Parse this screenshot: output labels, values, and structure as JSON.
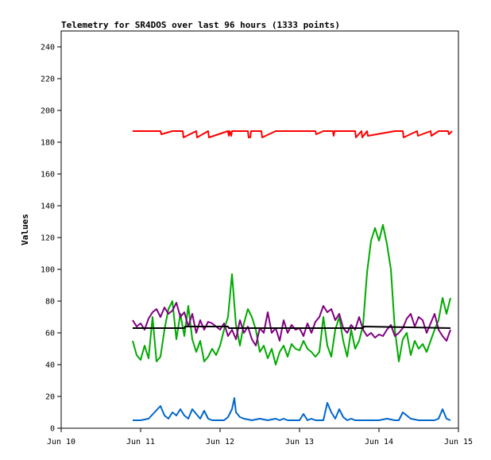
{
  "chart_data": {
    "type": "line",
    "title": "Telemetry for SR4DOS over last 96 hours (1333 points)",
    "xlabel": "",
    "ylabel": "Values",
    "xlim": [
      0,
      5
    ],
    "ylim": [
      0,
      250
    ],
    "x_ticks": [
      {
        "pos": 0,
        "label": "Jun 10"
      },
      {
        "pos": 1,
        "label": "Jun 11"
      },
      {
        "pos": 2,
        "label": "Jun 12"
      },
      {
        "pos": 3,
        "label": "Jun 13"
      },
      {
        "pos": 4,
        "label": "Jun 14"
      },
      {
        "pos": 5,
        "label": "Jun 15"
      }
    ],
    "y_ticks": [
      0,
      20,
      40,
      60,
      80,
      100,
      120,
      140,
      160,
      180,
      200,
      220,
      240
    ],
    "grid": false,
    "legend": "none",
    "series": [
      {
        "color": "#ff0000",
        "x": [
          0.9,
          1.0,
          1.25,
          1.26,
          1.4,
          1.5,
          1.53,
          1.54,
          1.7,
          1.71,
          1.85,
          1.86,
          2.1,
          2.11,
          2.12,
          2.14,
          2.15,
          2.35,
          2.36,
          2.38,
          2.39,
          2.52,
          2.53,
          2.7,
          3.2,
          3.21,
          3.3,
          3.42,
          3.43,
          3.44,
          3.7,
          3.71,
          3.78,
          3.79,
          3.85,
          3.86,
          4.2,
          4.3,
          4.31,
          4.48,
          4.49,
          4.65,
          4.66,
          4.75,
          4.87,
          4.88,
          4.92
        ],
        "y": [
          187,
          187,
          187,
          185,
          187,
          187,
          187,
          183,
          187,
          183,
          187,
          183,
          187,
          184,
          187,
          184,
          187,
          187,
          183,
          183,
          187,
          187,
          183,
          187,
          187,
          185,
          187,
          187,
          184,
          187,
          187,
          183,
          187,
          183,
          187,
          184,
          187,
          187,
          183,
          187,
          184,
          187,
          184,
          187,
          187,
          185,
          187
        ]
      },
      {
        "color": "#00aa00",
        "x": [
          0.9,
          0.95,
          1.0,
          1.05,
          1.1,
          1.15,
          1.2,
          1.25,
          1.3,
          1.35,
          1.4,
          1.45,
          1.5,
          1.55,
          1.6,
          1.65,
          1.7,
          1.75,
          1.8,
          1.85,
          1.9,
          1.95,
          2.0,
          2.05,
          2.1,
          2.15,
          2.2,
          2.25,
          2.3,
          2.35,
          2.4,
          2.45,
          2.5,
          2.55,
          2.6,
          2.65,
          2.7,
          2.75,
          2.8,
          2.85,
          2.9,
          2.95,
          3.0,
          3.05,
          3.1,
          3.15,
          3.2,
          3.25,
          3.3,
          3.35,
          3.4,
          3.45,
          3.5,
          3.55,
          3.6,
          3.65,
          3.7,
          3.75,
          3.8,
          3.85,
          3.9,
          3.95,
          4.0,
          4.05,
          4.1,
          4.15,
          4.2,
          4.25,
          4.3,
          4.35,
          4.4,
          4.45,
          4.5,
          4.55,
          4.6,
          4.65,
          4.7,
          4.75,
          4.8,
          4.85,
          4.9
        ],
        "y": [
          55,
          46,
          43,
          52,
          44,
          70,
          42,
          45,
          62,
          75,
          80,
          56,
          72,
          58,
          77,
          56,
          48,
          55,
          42,
          45,
          50,
          46,
          52,
          62,
          70,
          97,
          65,
          52,
          66,
          75,
          70,
          62,
          48,
          52,
          44,
          50,
          40,
          48,
          52,
          45,
          53,
          50,
          49,
          55,
          50,
          48,
          45,
          48,
          70,
          52,
          45,
          62,
          70,
          55,
          45,
          62,
          50,
          55,
          65,
          98,
          118,
          126,
          118,
          128,
          116,
          100,
          62,
          42,
          56,
          60,
          46,
          55,
          50,
          53,
          48,
          55,
          62,
          68,
          82,
          72,
          82
        ]
      },
      {
        "color": "#800080",
        "x": [
          0.9,
          0.95,
          1.0,
          1.05,
          1.1,
          1.15,
          1.2,
          1.25,
          1.3,
          1.35,
          1.4,
          1.45,
          1.5,
          1.55,
          1.6,
          1.65,
          1.7,
          1.75,
          1.8,
          1.85,
          1.9,
          1.95,
          2.0,
          2.05,
          2.1,
          2.15,
          2.2,
          2.25,
          2.3,
          2.35,
          2.4,
          2.45,
          2.5,
          2.55,
          2.6,
          2.65,
          2.7,
          2.75,
          2.8,
          2.85,
          2.9,
          2.95,
          3.0,
          3.05,
          3.1,
          3.15,
          3.2,
          3.25,
          3.3,
          3.35,
          3.4,
          3.45,
          3.5,
          3.55,
          3.6,
          3.65,
          3.7,
          3.75,
          3.8,
          3.85,
          3.9,
          3.95,
          4.0,
          4.05,
          4.1,
          4.15,
          4.2,
          4.25,
          4.3,
          4.35,
          4.4,
          4.45,
          4.5,
          4.55,
          4.6,
          4.65,
          4.7,
          4.75,
          4.8,
          4.85,
          4.9
        ],
        "y": [
          68,
          64,
          66,
          62,
          69,
          73,
          75,
          70,
          76,
          72,
          74,
          79,
          70,
          73,
          64,
          72,
          60,
          68,
          62,
          67,
          66,
          64,
          62,
          66,
          58,
          62,
          56,
          68,
          60,
          64,
          56,
          52,
          63,
          60,
          73,
          60,
          63,
          55,
          68,
          60,
          65,
          62,
          63,
          58,
          66,
          60,
          67,
          70,
          77,
          73,
          75,
          68,
          72,
          63,
          60,
          65,
          62,
          70,
          62,
          58,
          60,
          57,
          59,
          58,
          62,
          65,
          58,
          60,
          63,
          69,
          72,
          64,
          70,
          68,
          60,
          66,
          72,
          62,
          58,
          55,
          62
        ]
      },
      {
        "color": "#000000",
        "x": [
          0.9,
          1.55,
          1.56,
          2.1,
          2.11,
          2.4,
          2.41,
          3.7,
          3.71,
          3.8,
          3.81,
          4.9
        ],
        "y": [
          63,
          63,
          64,
          64,
          63,
          63,
          63,
          63,
          63,
          63,
          64,
          63
        ]
      },
      {
        "color": "#0066cc",
        "x": [
          0.9,
          1.0,
          1.1,
          1.25,
          1.3,
          1.35,
          1.4,
          1.45,
          1.5,
          1.55,
          1.6,
          1.65,
          1.7,
          1.75,
          1.8,
          1.85,
          1.9,
          1.95,
          2.0,
          2.05,
          2.1,
          2.15,
          2.18,
          2.2,
          2.25,
          2.3,
          2.4,
          2.5,
          2.6,
          2.7,
          2.75,
          2.8,
          2.85,
          2.9,
          3.0,
          3.05,
          3.1,
          3.15,
          3.2,
          3.3,
          3.35,
          3.4,
          3.45,
          3.5,
          3.55,
          3.6,
          3.65,
          3.7,
          3.8,
          3.9,
          4.0,
          4.1,
          4.2,
          4.25,
          4.3,
          4.4,
          4.5,
          4.6,
          4.7,
          4.75,
          4.8,
          4.85,
          4.9
        ],
        "y": [
          5,
          5,
          6,
          14,
          8,
          6,
          10,
          8,
          12,
          8,
          6,
          12,
          9,
          6,
          11,
          6,
          5,
          5,
          5,
          5,
          7,
          12,
          19,
          10,
          7,
          6,
          5,
          6,
          5,
          6,
          5,
          6,
          5,
          5,
          5,
          9,
          5,
          6,
          5,
          5,
          16,
          10,
          6,
          12,
          7,
          5,
          6,
          5,
          5,
          5,
          5,
          6,
          5,
          5,
          10,
          6,
          5,
          5,
          5,
          6,
          12,
          6,
          5
        ]
      }
    ]
  }
}
